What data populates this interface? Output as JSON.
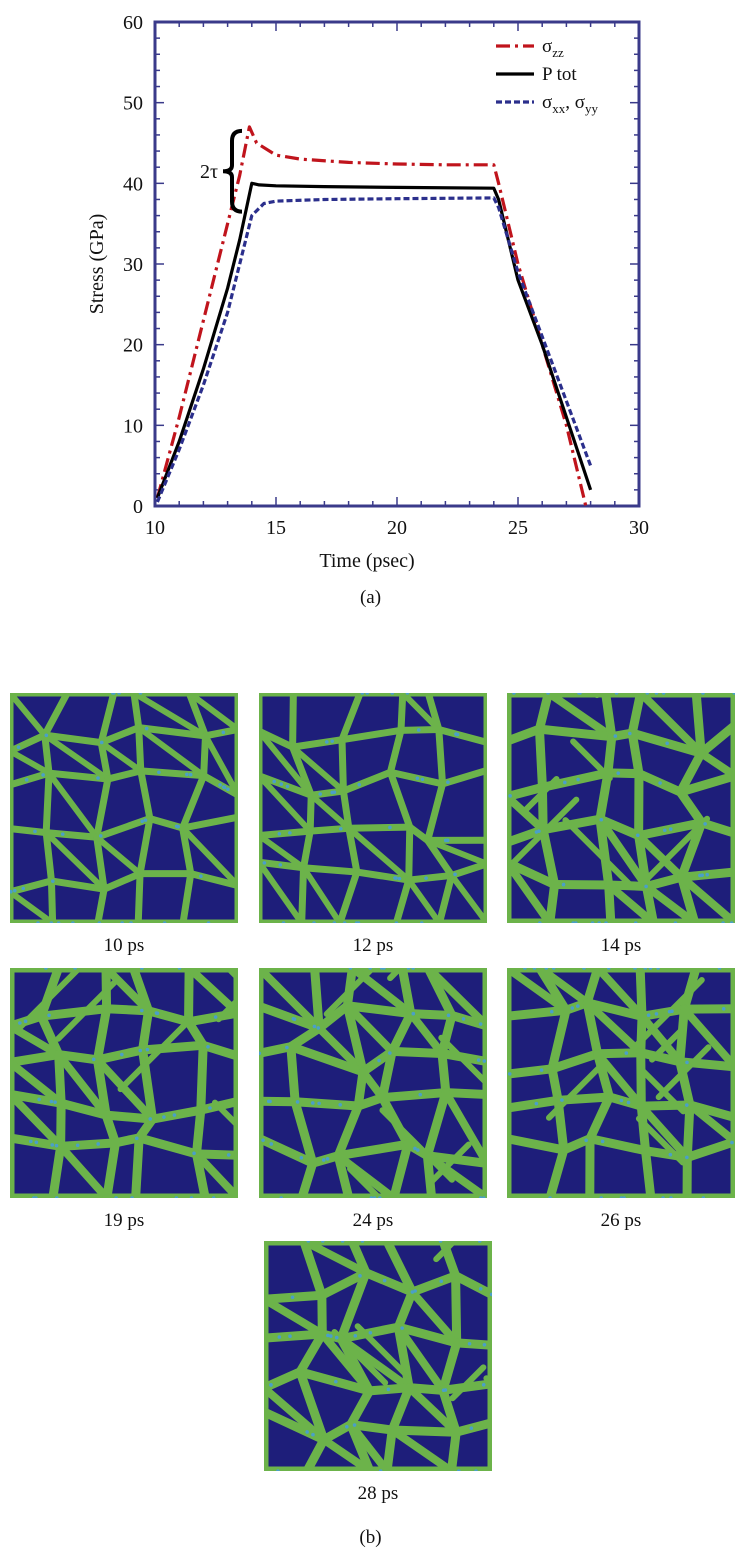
{
  "chart_data": {
    "type": "line",
    "xlabel": "Time (psec)",
    "ylabel": "Stress (GPa)",
    "xlim": [
      10,
      30
    ],
    "ylim": [
      0,
      60
    ],
    "xticks": [
      "10",
      "15",
      "20",
      "25",
      "30"
    ],
    "yticks": [
      "0",
      "10",
      "20",
      "30",
      "40",
      "50",
      "60"
    ],
    "grid": false,
    "legend": "top-right",
    "annotation": "2τ",
    "series": [
      {
        "name": "σzz",
        "name_base": "σ",
        "name_sub": "zz",
        "color": "#c0141c",
        "style": "dash-dot",
        "x": [
          10.1,
          11,
          12,
          13,
          13.5,
          13.9,
          14.2,
          15,
          16,
          18,
          20,
          22,
          24,
          24.2,
          25,
          26,
          27,
          27.8
        ],
        "y": [
          1,
          11,
          23,
          35,
          41,
          47,
          45,
          43.5,
          43,
          42.6,
          42.4,
          42.3,
          42.3,
          40,
          30,
          20,
          10,
          0
        ]
      },
      {
        "name": "P tot",
        "color": "#000000",
        "style": "solid",
        "x": [
          10.1,
          11,
          12,
          13,
          13.5,
          14.0,
          14.3,
          15,
          17,
          20,
          24,
          24.2,
          25,
          26,
          27,
          28
        ],
        "y": [
          1,
          8,
          17,
          27,
          33,
          40,
          39.8,
          39.7,
          39.6,
          39.5,
          39.4,
          38,
          28,
          20,
          11,
          2
        ]
      },
      {
        "name": "σxx, σyy",
        "name_base": "σ",
        "name_sub": "xx",
        "name_sep": ", ",
        "name_base2": "σ",
        "name_sub2": "yy",
        "color": "#2b2f8c",
        "style": "dashed",
        "x": [
          10.1,
          11,
          12,
          13,
          13.5,
          14,
          14.5,
          15,
          17,
          20,
          24,
          24.2,
          25,
          26,
          27,
          28
        ],
        "y": [
          0.5,
          7,
          15,
          24,
          30,
          36,
          37.5,
          37.8,
          38,
          38.1,
          38.2,
          37,
          29,
          21,
          13,
          5
        ]
      }
    ]
  },
  "labels": {
    "panel_a": "(a)",
    "panel_b": "(b)"
  },
  "frames": [
    {
      "caption": "10 ps"
    },
    {
      "caption": "12 ps"
    },
    {
      "caption": "14 ps"
    },
    {
      "caption": "19 ps"
    },
    {
      "caption": "24 ps"
    },
    {
      "caption": "26 ps"
    },
    {
      "caption": "28 ps"
    }
  ],
  "colors": {
    "frame_background": "#1e1e7a",
    "boundary": "#6cb34a",
    "boundary_light": "#4aa0c8",
    "axis": "#3a3a8a"
  }
}
